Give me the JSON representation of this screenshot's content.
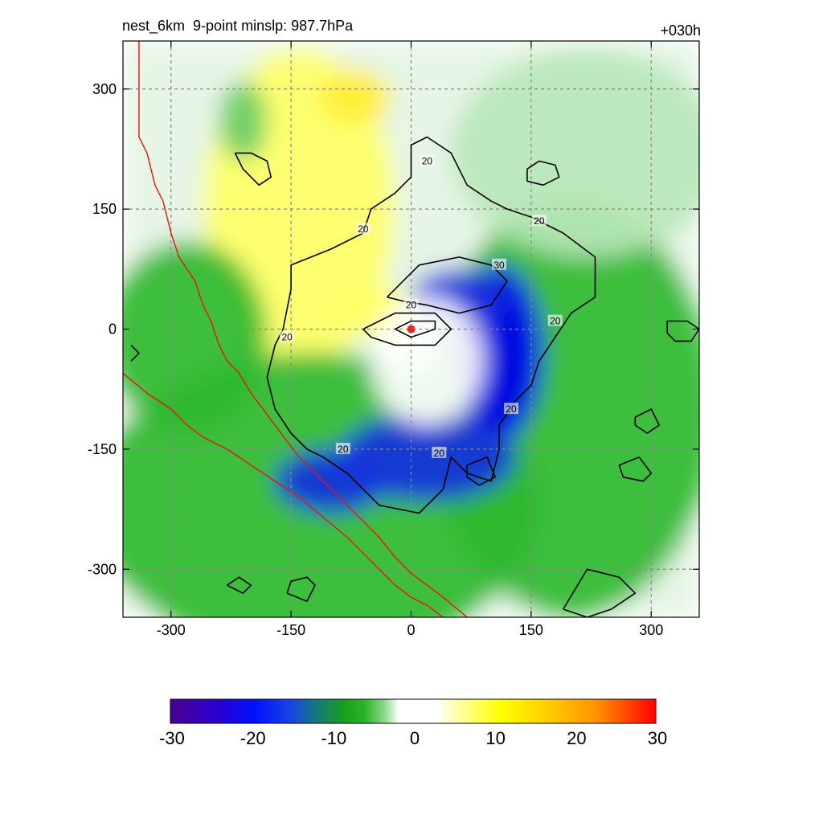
{
  "title_left": "nest_6km  9-point minslp: 987.7hPa",
  "title_right": "+030h",
  "chart_data": {
    "type": "heatmap",
    "title": "nest_6km  9-point minslp: 987.7hPa",
    "time_label": "+030h",
    "xlim": [
      -360,
      360
    ],
    "ylim": [
      -360,
      360
    ],
    "x_ticks": [
      -300,
      -150,
      0,
      150,
      300
    ],
    "y_ticks": [
      300,
      150,
      0,
      -150,
      -300
    ],
    "grid": true,
    "colorbar": {
      "min": -30,
      "max": 30,
      "ticks": [
        -30,
        -20,
        -10,
        0,
        10,
        20,
        30
      ],
      "placement": "bottom"
    },
    "center_marker": {
      "x": 0,
      "y": 0,
      "color": "#ff2020"
    },
    "fields": [
      {
        "name": "yellow-northwest",
        "cx": -140,
        "cy": 150,
        "rx": 120,
        "ry": 200,
        "value": 7
      },
      {
        "name": "yellow-north",
        "cx": -70,
        "cy": 290,
        "rx": 45,
        "ry": 35,
        "value": 9
      },
      {
        "name": "yellow-near-center",
        "cx": -40,
        "cy": 20,
        "rx": 60,
        "ry": 30,
        "value": 6
      },
      {
        "name": "green-southwest",
        "cx": -120,
        "cy": -220,
        "rx": 280,
        "ry": 190,
        "value": -10
      },
      {
        "name": "green-east",
        "cx": 200,
        "cy": -100,
        "rx": 180,
        "ry": 260,
        "value": -9
      },
      {
        "name": "green-west",
        "cx": -280,
        "cy": -10,
        "rx": 100,
        "ry": 120,
        "value": -9
      },
      {
        "name": "green-north",
        "cx": 220,
        "cy": 220,
        "rx": 170,
        "ry": 130,
        "value": -5
      },
      {
        "name": "green-northwest-streak",
        "cx": -210,
        "cy": 260,
        "rx": 30,
        "ry": 50,
        "value": -8
      },
      {
        "name": "blue-arc-east",
        "cx": 110,
        "cy": -30,
        "rx": 55,
        "ry": 110,
        "value": -22
      },
      {
        "name": "blue-arc-south",
        "cx": 20,
        "cy": -160,
        "rx": 110,
        "ry": 55,
        "value": -20
      },
      {
        "name": "blue-arc-southwest",
        "cx": -100,
        "cy": -190,
        "rx": 70,
        "ry": 40,
        "value": -18
      },
      {
        "name": "blue-arc-north",
        "cx": 60,
        "cy": 40,
        "rx": 60,
        "ry": 35,
        "value": -18
      },
      {
        "name": "white-eye",
        "cx": 20,
        "cy": -40,
        "rx": 70,
        "ry": 80,
        "value": 0
      }
    ],
    "contours": [
      {
        "label": "20",
        "points": [
          [
            -160,
            0
          ],
          [
            -150,
            50
          ],
          [
            -150,
            80
          ],
          [
            -100,
            100
          ],
          [
            -60,
            120
          ],
          [
            -50,
            150
          ],
          [
            -20,
            170
          ],
          [
            0,
            190
          ],
          [
            0,
            230
          ],
          [
            20,
            240
          ],
          [
            50,
            220
          ],
          [
            70,
            180
          ],
          [
            100,
            160
          ],
          [
            120,
            150
          ],
          [
            150,
            140
          ],
          [
            190,
            120
          ],
          [
            230,
            90
          ],
          [
            230,
            40
          ],
          [
            200,
            20
          ],
          [
            180,
            -10
          ],
          [
            160,
            -40
          ],
          [
            150,
            -70
          ],
          [
            130,
            -90
          ],
          [
            110,
            -120
          ],
          [
            110,
            -150
          ],
          [
            100,
            -190
          ],
          [
            70,
            -180
          ],
          [
            50,
            -160
          ],
          [
            40,
            -200
          ],
          [
            10,
            -230
          ],
          [
            -40,
            -220
          ],
          [
            -60,
            -200
          ],
          [
            -80,
            -180
          ],
          [
            -110,
            -160
          ],
          [
            -130,
            -150
          ],
          [
            -150,
            -130
          ],
          [
            -170,
            -100
          ],
          [
            -180,
            -60
          ],
          [
            -170,
            -20
          ],
          [
            -160,
            0
          ]
        ]
      },
      {
        "label": "30",
        "points": [
          [
            -30,
            40
          ],
          [
            10,
            80
          ],
          [
            60,
            90
          ],
          [
            100,
            80
          ],
          [
            120,
            60
          ],
          [
            100,
            30
          ],
          [
            60,
            20
          ],
          [
            20,
            30
          ],
          [
            -10,
            35
          ],
          [
            -30,
            40
          ]
        ]
      },
      {
        "label": "20",
        "points": [
          [
            -60,
            0
          ],
          [
            -20,
            20
          ],
          [
            30,
            20
          ],
          [
            50,
            0
          ],
          [
            30,
            -20
          ],
          [
            -20,
            -20
          ],
          [
            -50,
            -10
          ],
          [
            -60,
            0
          ]
        ]
      },
      {
        "label": "",
        "points": [
          [
            -20,
            0
          ],
          [
            0,
            10
          ],
          [
            30,
            10
          ],
          [
            30,
            0
          ],
          [
            0,
            -10
          ],
          [
            -20,
            0
          ]
        ]
      },
      {
        "label": "",
        "points": [
          [
            -220,
            220
          ],
          [
            -210,
            200
          ],
          [
            -190,
            180
          ],
          [
            -175,
            190
          ],
          [
            -180,
            210
          ],
          [
            -200,
            220
          ],
          [
            -220,
            220
          ]
        ]
      },
      {
        "label": "",
        "points": [
          [
            145,
            200
          ],
          [
            160,
            210
          ],
          [
            180,
            205
          ],
          [
            185,
            190
          ],
          [
            165,
            180
          ],
          [
            145,
            185
          ],
          [
            145,
            200
          ]
        ]
      },
      {
        "label": "",
        "points": [
          [
            -230,
            -320
          ],
          [
            -210,
            -330
          ],
          [
            -200,
            -320
          ],
          [
            -215,
            -310
          ],
          [
            -230,
            -320
          ]
        ]
      },
      {
        "label": "",
        "points": [
          [
            -155,
            -330
          ],
          [
            -130,
            -340
          ],
          [
            -120,
            -320
          ],
          [
            -130,
            -310
          ],
          [
            -150,
            -315
          ],
          [
            -155,
            -330
          ]
        ]
      },
      {
        "label": "",
        "points": [
          [
            260,
            -170
          ],
          [
            285,
            -160
          ],
          [
            300,
            -180
          ],
          [
            290,
            -190
          ],
          [
            265,
            -185
          ],
          [
            260,
            -170
          ]
        ]
      },
      {
        "label": "",
        "points": [
          [
            280,
            -110
          ],
          [
            300,
            -100
          ],
          [
            310,
            -120
          ],
          [
            295,
            -130
          ],
          [
            280,
            -120
          ],
          [
            280,
            -110
          ]
        ]
      },
      {
        "label": "",
        "points": [
          [
            190,
            -350
          ],
          [
            220,
            -300
          ],
          [
            260,
            -310
          ],
          [
            280,
            -330
          ],
          [
            250,
            -350
          ],
          [
            220,
            -360
          ],
          [
            190,
            -350
          ]
        ]
      },
      {
        "label": "",
        "points": [
          [
            320,
            10
          ],
          [
            345,
            10
          ],
          [
            360,
            0
          ],
          [
            350,
            -15
          ],
          [
            330,
            -15
          ],
          [
            320,
            -5
          ],
          [
            320,
            10
          ]
        ]
      },
      {
        "label": "",
        "points": [
          [
            70,
            -170
          ],
          [
            95,
            -160
          ],
          [
            105,
            -185
          ],
          [
            85,
            -195
          ],
          [
            70,
            -185
          ],
          [
            70,
            -170
          ]
        ]
      },
      {
        "label": "",
        "points": [
          [
            -350,
            -20
          ],
          [
            -340,
            -30
          ],
          [
            -350,
            -40
          ]
        ]
      }
    ],
    "contour_labels": [
      {
        "x": 20,
        "y": 210,
        "text": "20"
      },
      {
        "x": -60,
        "y": 125,
        "text": "20"
      },
      {
        "x": 160,
        "y": 135,
        "text": "20"
      },
      {
        "x": 110,
        "y": 80,
        "text": "30"
      },
      {
        "x": 0,
        "y": 30,
        "text": "20"
      },
      {
        "x": -155,
        "y": -10,
        "text": "20"
      },
      {
        "x": 180,
        "y": 10,
        "text": "20"
      },
      {
        "x": 125,
        "y": -100,
        "text": "20"
      },
      {
        "x": -85,
        "y": -150,
        "text": "20"
      },
      {
        "x": 35,
        "y": -155,
        "text": "20"
      }
    ],
    "red_lines": [
      {
        "points": [
          [
            -340,
            360
          ],
          [
            -340,
            240
          ],
          [
            -330,
            220
          ],
          [
            -320,
            180
          ],
          [
            -310,
            160
          ],
          [
            -300,
            120
          ],
          [
            -290,
            90
          ],
          [
            -270,
            60
          ],
          [
            -260,
            30
          ],
          [
            -250,
            10
          ],
          [
            -240,
            -20
          ],
          [
            -230,
            -40
          ],
          [
            -215,
            -55
          ],
          [
            -200,
            -80
          ],
          [
            -185,
            -100
          ],
          [
            -170,
            -120
          ],
          [
            -155,
            -140
          ],
          [
            -140,
            -160
          ],
          [
            -120,
            -180
          ],
          [
            -100,
            -200
          ],
          [
            -80,
            -220
          ],
          [
            -60,
            -240
          ],
          [
            -40,
            -260
          ],
          [
            -20,
            -285
          ],
          [
            0,
            -305
          ],
          [
            20,
            -320
          ],
          [
            40,
            -335
          ],
          [
            70,
            -360
          ]
        ]
      },
      {
        "points": [
          [
            -360,
            -55
          ],
          [
            -330,
            -80
          ],
          [
            -300,
            -100
          ],
          [
            -280,
            -120
          ],
          [
            -260,
            -135
          ],
          [
            -230,
            -150
          ],
          [
            -200,
            -170
          ],
          [
            -170,
            -190
          ],
          [
            -140,
            -210
          ],
          [
            -110,
            -235
          ],
          [
            -80,
            -260
          ],
          [
            -60,
            -280
          ],
          [
            -40,
            -300
          ],
          [
            -20,
            -320
          ],
          [
            0,
            -335
          ],
          [
            20,
            -345
          ],
          [
            40,
            -360
          ]
        ]
      }
    ]
  }
}
